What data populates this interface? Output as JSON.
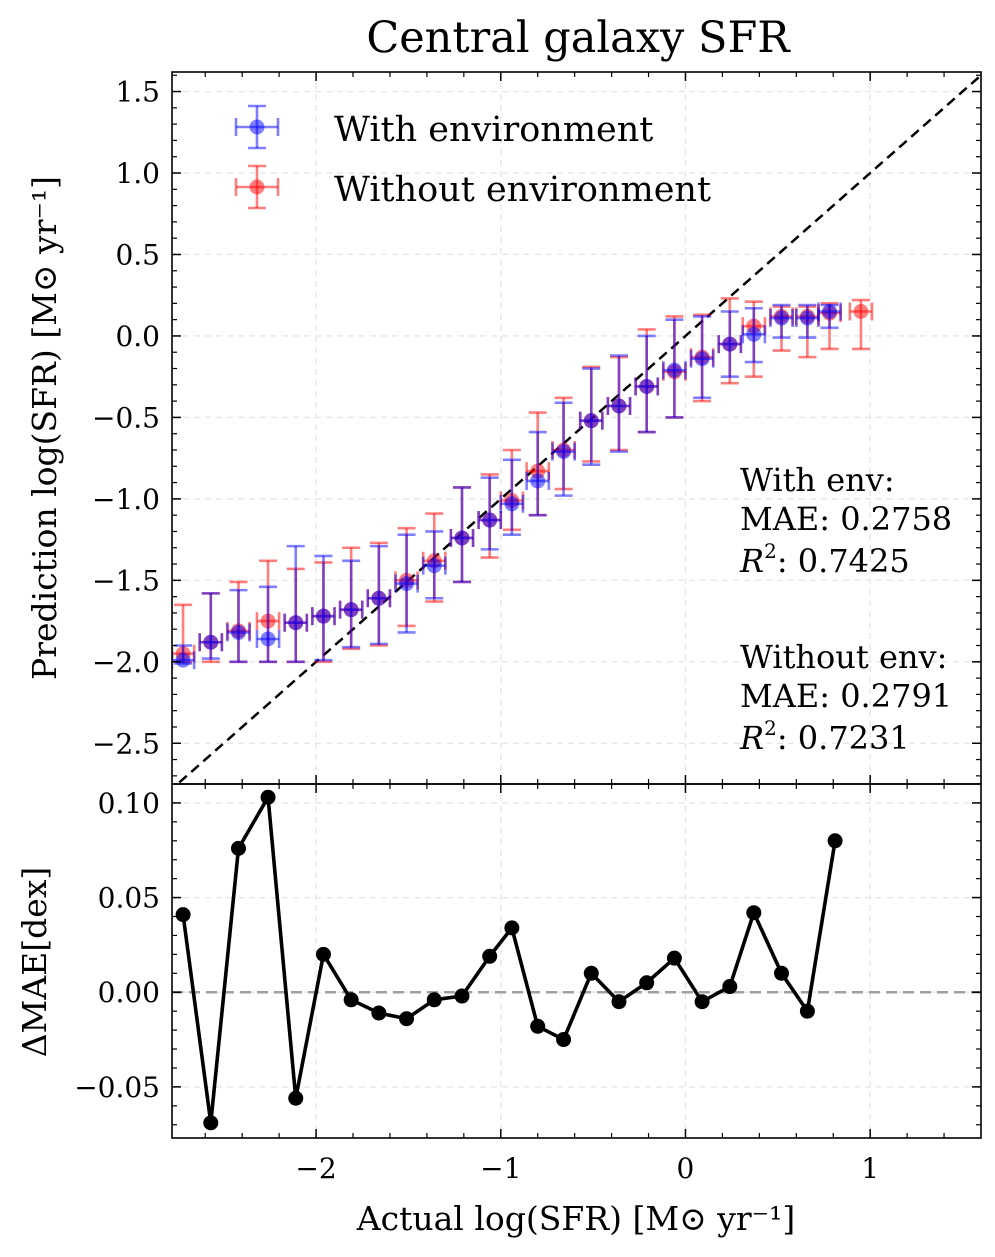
{
  "chart_data": [
    {
      "type": "scatter",
      "title": "Central galaxy SFR",
      "xlabel": "Actual log(SFR) [M⊙ yr⁻¹]",
      "ylabel": "Prediction log(SFR) [M⊙ yr⁻¹]",
      "xlim": [
        -2.78,
        1.6
      ],
      "ylim": [
        -2.75,
        1.62
      ],
      "xticks": [
        -2,
        -1,
        0,
        1
      ],
      "xtick_labels": [
        "−2",
        "−1",
        "0",
        "1"
      ],
      "yticks": [
        1.5,
        1.0,
        0.5,
        0.0,
        -0.5,
        -1.0,
        -1.5,
        -2.0,
        -2.5
      ],
      "ytick_labels": [
        "1.5",
        "1.0",
        "0.5",
        "0.0",
        "−0.5",
        "−1.0",
        "−1.5",
        "−2.0",
        "−2.5"
      ],
      "grid": true,
      "reference_line": "y = x",
      "legend": {
        "placement": "top-left",
        "entries": [
          "With environment",
          "Without environment"
        ]
      },
      "series": [
        {
          "name": "With environment",
          "color": "#0000ff",
          "x": [
            -2.72,
            -2.57,
            -2.42,
            -2.26,
            -2.11,
            -1.96,
            -1.81,
            -1.66,
            -1.51,
            -1.36,
            -1.21,
            -1.06,
            -0.94,
            -0.8,
            -0.66,
            -0.51,
            -0.36,
            -0.21,
            -0.06,
            0.09,
            0.24,
            0.37,
            0.52,
            0.66,
            0.78
          ],
          "y": [
            -1.99,
            -1.88,
            -1.82,
            -1.86,
            -1.76,
            -1.72,
            -1.68,
            -1.61,
            -1.52,
            -1.41,
            -1.24,
            -1.13,
            -1.03,
            -0.89,
            -0.71,
            -0.52,
            -0.43,
            -0.31,
            -0.21,
            -0.14,
            -0.05,
            0.01,
            0.11,
            0.11,
            0.15
          ],
          "yerr_lo": [
            0.02,
            0.1,
            0.18,
            0.14,
            0.24,
            0.27,
            0.23,
            0.28,
            0.3,
            0.2,
            0.27,
            0.18,
            0.19,
            0.21,
            0.27,
            0.27,
            0.28,
            0.28,
            0.29,
            0.24,
            0.2,
            0.17,
            0.12,
            0.12,
            0.1
          ],
          "yerr_hi": [
            0.09,
            0.3,
            0.26,
            0.32,
            0.47,
            0.37,
            0.3,
            0.32,
            0.3,
            0.21,
            0.31,
            0.26,
            0.27,
            0.3,
            0.3,
            0.32,
            0.31,
            0.31,
            0.31,
            0.26,
            0.2,
            0.16,
            0.08,
            0.08,
            0.04
          ],
          "xerr": 0.06,
          "stats": {
            "label": "With env:",
            "mae_label": "MAE: 0.2758",
            "r2_value": ": 0.7425"
          }
        },
        {
          "name": "Without environment",
          "color": "#ff0000",
          "x": [
            -2.72,
            -2.57,
            -2.42,
            -2.26,
            -2.11,
            -1.96,
            -1.81,
            -1.66,
            -1.51,
            -1.36,
            -1.21,
            -1.06,
            -0.94,
            -0.8,
            -0.66,
            -0.51,
            -0.36,
            -0.21,
            -0.06,
            0.09,
            0.24,
            0.37,
            0.52,
            0.66,
            0.78,
            0.95
          ],
          "y": [
            -1.95,
            -1.88,
            -1.81,
            -1.75,
            -1.76,
            -1.72,
            -1.68,
            -1.61,
            -1.5,
            -1.38,
            -1.24,
            -1.13,
            -1.01,
            -0.83,
            -0.7,
            -0.52,
            -0.43,
            -0.31,
            -0.22,
            -0.13,
            -0.05,
            0.06,
            0.12,
            0.12,
            0.14,
            0.15
          ],
          "yerr_lo": [
            0.05,
            0.12,
            0.19,
            0.25,
            0.24,
            0.28,
            0.24,
            0.29,
            0.28,
            0.25,
            0.27,
            0.23,
            0.18,
            0.27,
            0.24,
            0.25,
            0.27,
            0.28,
            0.28,
            0.27,
            0.24,
            0.31,
            0.21,
            0.25,
            0.22,
            0.23
          ],
          "yerr_hi": [
            0.3,
            0.3,
            0.3,
            0.37,
            0.33,
            0.33,
            0.38,
            0.34,
            0.32,
            0.29,
            0.31,
            0.28,
            0.31,
            0.36,
            0.32,
            0.33,
            0.3,
            0.35,
            0.34,
            0.26,
            0.28,
            0.15,
            0.06,
            0.06,
            0.06,
            0.07
          ],
          "xerr": 0.06,
          "stats": {
            "label": "Without env:",
            "mae_label": "MAE: 0.2791",
            "r2_value": ": 0.7231"
          }
        }
      ]
    },
    {
      "type": "line",
      "title": "",
      "xlabel": "Actual log(SFR) [M⊙ yr⁻¹]",
      "ylabel": "ΔMAE[dex]",
      "xlim": [
        -2.78,
        1.6
      ],
      "ylim": [
        -0.077,
        0.11
      ],
      "xticks": [
        -2,
        -1,
        0,
        1
      ],
      "xtick_labels": [
        "−2",
        "−1",
        "0",
        "1"
      ],
      "yticks": [
        0.1,
        0.05,
        0.0,
        -0.05
      ],
      "ytick_labels": [
        "0.10",
        "0.05",
        "0.00",
        "−0.05"
      ],
      "grid": true,
      "reference_line": "y = 0",
      "series": [
        {
          "name": "ΔMAE",
          "color": "#000000",
          "x": [
            -2.72,
            -2.57,
            -2.42,
            -2.26,
            -2.11,
            -1.96,
            -1.81,
            -1.66,
            -1.51,
            -1.36,
            -1.21,
            -1.06,
            -0.94,
            -0.8,
            -0.66,
            -0.51,
            -0.36,
            -0.21,
            -0.06,
            0.09,
            0.24,
            0.37,
            0.52,
            0.66,
            0.81
          ],
          "y": [
            0.041,
            -0.069,
            0.076,
            0.103,
            -0.056,
            0.02,
            -0.004,
            -0.011,
            -0.014,
            -0.004,
            -0.002,
            0.019,
            0.034,
            -0.018,
            -0.025,
            0.01,
            -0.005,
            0.005,
            0.018,
            -0.005,
            0.003,
            0.042,
            0.01,
            -0.01,
            0.08
          ]
        }
      ]
    }
  ]
}
